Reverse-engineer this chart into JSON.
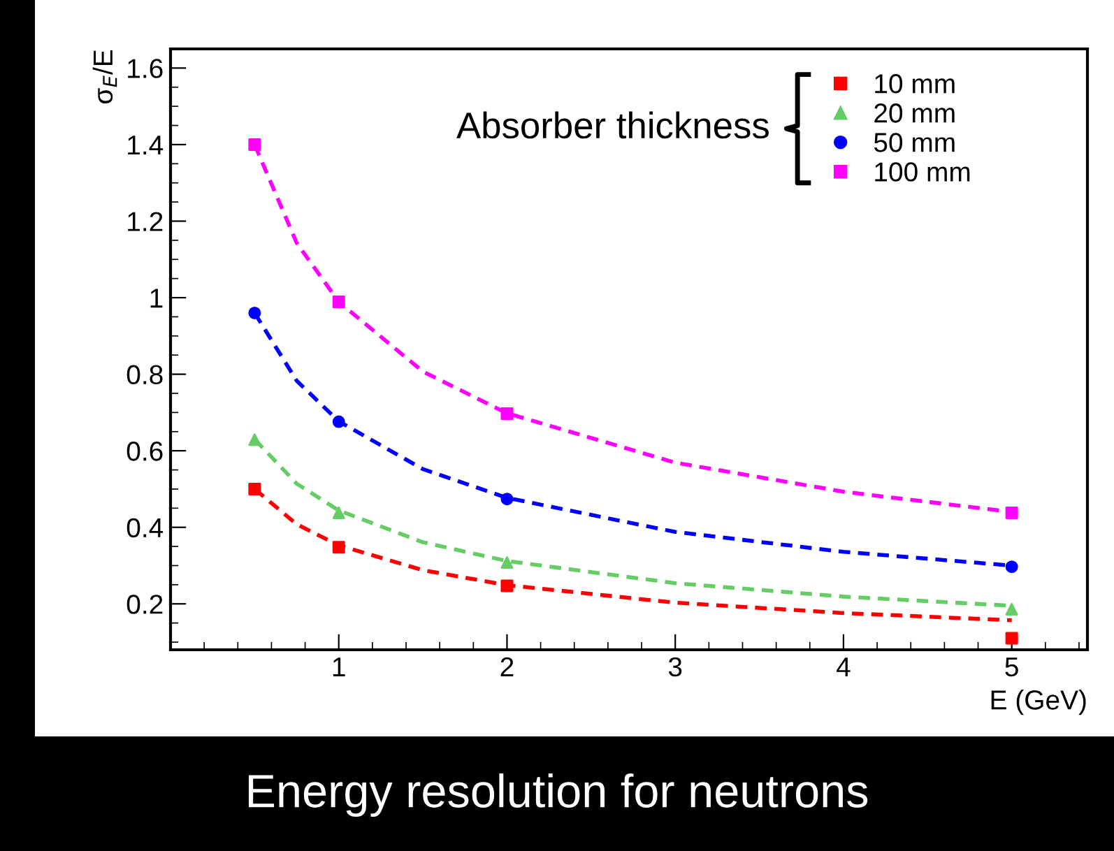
{
  "chart_data": {
    "type": "scatter",
    "title": "Energy resolution for neutrons",
    "xlabel": "E (GeV)",
    "ylabel": "σ$_{E}$/E",
    "legend_title": "Absorber thickness",
    "legend": "top right",
    "grid": false,
    "xlim": [
      0,
      5.45
    ],
    "ylim": [
      0.08,
      1.65
    ],
    "xticks": [
      1,
      2,
      3,
      4,
      5
    ],
    "yticks": [
      0.2,
      0.4,
      0.6,
      0.8,
      {
        "value": 1,
        "label": "1"
      },
      1.2,
      1.4,
      1.6
    ],
    "series": [
      {
        "name": "10 mm",
        "marker": "square",
        "color": "#ff0000",
        "x": [
          0.5,
          1,
          2,
          5
        ],
        "values": [
          0.5,
          0.348,
          0.247,
          0.11
        ]
      },
      {
        "name": "20 mm",
        "marker": "triangle",
        "color": "#66cc66",
        "x": [
          0.5,
          1,
          2,
          5
        ],
        "values": [
          0.629,
          0.438,
          0.308,
          0.186
        ]
      },
      {
        "name": "50 mm",
        "marker": "circle",
        "color": "#0000ff",
        "x": [
          0.5,
          1,
          2,
          5
        ],
        "values": [
          0.96,
          0.676,
          0.474,
          0.297
        ]
      },
      {
        "name": "100 mm",
        "marker": "square",
        "color": "#ff00ff",
        "x": [
          0.5,
          1,
          2,
          5
        ],
        "values": [
          1.4,
          0.989,
          0.697,
          0.438
        ]
      },
      {
        "type": "line",
        "line_style": "dashed",
        "color": "#ff0000",
        "x": [
          0.5,
          0.75,
          1,
          1.5,
          2,
          3,
          4,
          5
        ],
        "values": [
          0.5,
          0.408,
          0.353,
          0.288,
          0.249,
          0.203,
          0.176,
          0.157
        ]
      },
      {
        "type": "line",
        "line_style": "dashed",
        "color": "#66cc66",
        "x": [
          0.5,
          0.75,
          1,
          1.5,
          2,
          3,
          4,
          5
        ],
        "values": [
          0.63,
          0.514,
          0.444,
          0.361,
          0.312,
          0.254,
          0.219,
          0.195
        ]
      },
      {
        "type": "line",
        "line_style": "dashed",
        "color": "#0000ff",
        "x": [
          0.5,
          0.75,
          1,
          1.5,
          2,
          3,
          4,
          5
        ],
        "values": [
          0.96,
          0.783,
          0.677,
          0.552,
          0.477,
          0.388,
          0.336,
          0.3
        ]
      },
      {
        "type": "line",
        "line_style": "dashed",
        "color": "#ff00ff",
        "x": [
          0.5,
          0.75,
          1,
          1.5,
          2,
          3,
          4,
          5
        ],
        "values": [
          1.4,
          1.143,
          0.989,
          0.807,
          0.698,
          0.569,
          0.493,
          0.44
        ]
      }
    ]
  }
}
